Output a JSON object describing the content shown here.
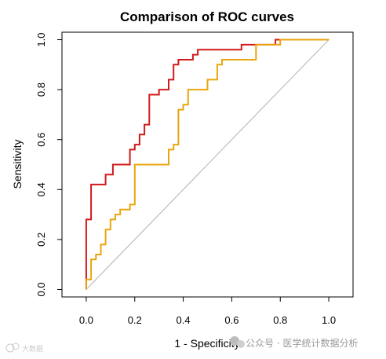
{
  "chart_data": {
    "type": "line",
    "title": "Comparison of ROC curves",
    "xlabel": "1 - Specificity",
    "ylabel": "Sensitivity",
    "xlim": [
      -0.1,
      1.1
    ],
    "ylim": [
      -0.03,
      1.03
    ],
    "x_ticks": [
      "0.0",
      "0.2",
      "0.4",
      "0.6",
      "0.8",
      "1.0"
    ],
    "y_ticks": [
      "0.0",
      "0.2",
      "0.4",
      "0.6",
      "0.8",
      "1.0"
    ],
    "grid": false,
    "legend": "none",
    "reference_line": {
      "from": [
        0,
        0
      ],
      "to": [
        1,
        1
      ],
      "color": "#b0b0b0"
    },
    "series": [
      {
        "color": "#d11a1a",
        "x": [
          0.0,
          0.0,
          0.02,
          0.02,
          0.08,
          0.08,
          0.11,
          0.11,
          0.18,
          0.18,
          0.2,
          0.2,
          0.22,
          0.22,
          0.24,
          0.24,
          0.26,
          0.26,
          0.3,
          0.3,
          0.34,
          0.34,
          0.36,
          0.36,
          0.38,
          0.38,
          0.44,
          0.44,
          0.46,
          0.46,
          0.64,
          0.64,
          0.78,
          0.78,
          0.8,
          0.8,
          1.0
        ],
        "y": [
          0.0,
          0.28,
          0.28,
          0.42,
          0.42,
          0.46,
          0.46,
          0.5,
          0.5,
          0.56,
          0.56,
          0.58,
          0.58,
          0.62,
          0.62,
          0.66,
          0.66,
          0.78,
          0.78,
          0.8,
          0.8,
          0.84,
          0.84,
          0.9,
          0.9,
          0.92,
          0.92,
          0.94,
          0.94,
          0.96,
          0.96,
          0.98,
          0.98,
          1.0,
          1.0,
          1.0,
          1.0
        ]
      },
      {
        "color": "#e8a60e",
        "x": [
          0.0,
          0.0,
          0.02,
          0.02,
          0.04,
          0.04,
          0.06,
          0.06,
          0.08,
          0.08,
          0.1,
          0.1,
          0.12,
          0.12,
          0.14,
          0.14,
          0.18,
          0.18,
          0.2,
          0.2,
          0.34,
          0.34,
          0.36,
          0.36,
          0.38,
          0.38,
          0.4,
          0.4,
          0.42,
          0.42,
          0.5,
          0.5,
          0.54,
          0.54,
          0.56,
          0.56,
          0.7,
          0.7,
          0.8,
          0.8,
          1.0
        ],
        "y": [
          0.0,
          0.04,
          0.04,
          0.12,
          0.12,
          0.14,
          0.14,
          0.18,
          0.18,
          0.24,
          0.24,
          0.28,
          0.28,
          0.3,
          0.3,
          0.32,
          0.32,
          0.34,
          0.34,
          0.5,
          0.5,
          0.56,
          0.56,
          0.58,
          0.58,
          0.72,
          0.72,
          0.74,
          0.74,
          0.8,
          0.8,
          0.84,
          0.84,
          0.9,
          0.9,
          0.92,
          0.92,
          0.98,
          0.98,
          1.0,
          1.0
        ]
      }
    ]
  },
  "watermark": {
    "left_text": "大数据",
    "right_text": "公众号 · 医学统计数据分析"
  }
}
